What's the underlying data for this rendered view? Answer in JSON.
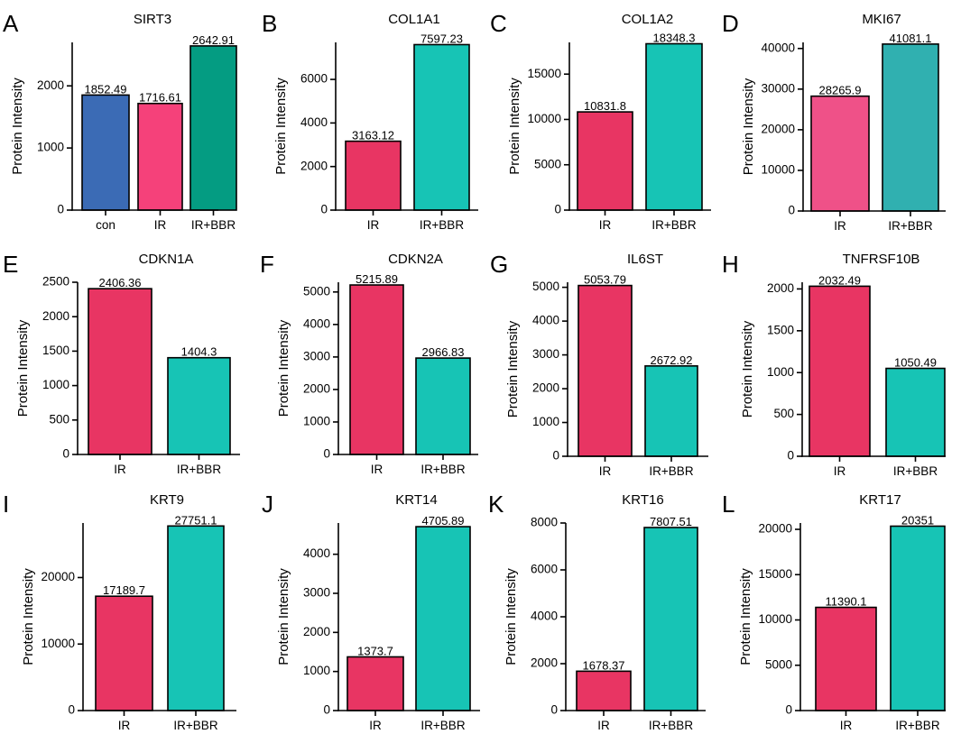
{
  "figure": {
    "ylabel": "Protein Intensity",
    "colors": {
      "con": "#3b6bb5",
      "IR_pink": "#f5417a",
      "IR_red": "#e83563",
      "IR_mki67": "#ef5188",
      "BBR_dark": "#049c82",
      "BBR_teal": "#17c4b5",
      "BBR_mki67": "#30b0b0"
    }
  },
  "chart_data": [
    {
      "panel": "A",
      "title": "SIRT3",
      "type": "bar",
      "categories": [
        "con",
        "IR",
        "IR+BBR"
      ],
      "values": [
        1852.49,
        1716.61,
        2642.91
      ],
      "value_labels": [
        "1852.49",
        "1716.61",
        "2642.91"
      ],
      "bar_colors": [
        "#3b6bb5",
        "#f5417a",
        "#049c82"
      ],
      "ylabel": "Protein Intensity",
      "ylim": [
        0,
        2700
      ],
      "yticks": [
        0,
        1000,
        2000
      ],
      "ytick_labels": [
        "0",
        "1000",
        "2000"
      ]
    },
    {
      "panel": "B",
      "title": "COL1A1",
      "type": "bar",
      "categories": [
        "IR",
        "IR+BBR"
      ],
      "values": [
        3163.12,
        7597.23
      ],
      "value_labels": [
        "3163.12",
        "7597.23"
      ],
      "bar_colors": [
        "#e83563",
        "#17c4b5"
      ],
      "ylabel": "Protein Intensity",
      "ylim": [
        0,
        7700
      ],
      "yticks": [
        0,
        2000,
        4000,
        6000
      ],
      "ytick_labels": [
        "0",
        "2000",
        "4000",
        "6000"
      ]
    },
    {
      "panel": "C",
      "title": "COL1A2",
      "type": "bar",
      "categories": [
        "IR",
        "IR+BBR"
      ],
      "values": [
        10831.8,
        18348.3
      ],
      "value_labels": [
        "10831.8",
        "18348.3"
      ],
      "bar_colors": [
        "#e83563",
        "#17c4b5"
      ],
      "ylabel": "Protein Intensity",
      "ylim": [
        0,
        18500
      ],
      "yticks": [
        0,
        5000,
        10000,
        15000
      ],
      "ytick_labels": [
        "0",
        "5000",
        "10000",
        "15000"
      ]
    },
    {
      "panel": "D",
      "title": "MKI67",
      "type": "bar",
      "categories": [
        "IR",
        "IR+BBR"
      ],
      "values": [
        28265.9,
        41081.1
      ],
      "value_labels": [
        "28265.9",
        "41081.1"
      ],
      "bar_colors": [
        "#ef5188",
        "#30b0b0"
      ],
      "ylabel": "Protein Intensity",
      "ylim": [
        0,
        41500
      ],
      "yticks": [
        0,
        10000,
        20000,
        30000,
        40000
      ],
      "ytick_labels": [
        "0",
        "10000",
        "20000",
        "30000",
        "40000"
      ]
    },
    {
      "panel": "E",
      "title": "CDKN1A",
      "type": "bar",
      "categories": [
        "IR",
        "IR+BBR"
      ],
      "values": [
        2406.36,
        1404.3
      ],
      "value_labels": [
        "2406.36",
        "1404.3"
      ],
      "bar_colors": [
        "#e83563",
        "#17c4b5"
      ],
      "ylabel": "Protein Intensity",
      "ylim": [
        0,
        2500
      ],
      "yticks": [
        0,
        500,
        1000,
        1500,
        2000,
        2500
      ],
      "ytick_labels": [
        "0",
        "500",
        "1000",
        "1500",
        "2000",
        "2500"
      ]
    },
    {
      "panel": "F",
      "title": "CDKN2A",
      "type": "bar",
      "categories": [
        "IR",
        "IR+BBR"
      ],
      "values": [
        5215.89,
        2966.83
      ],
      "value_labels": [
        "5215.89",
        "2966.83"
      ],
      "bar_colors": [
        "#e83563",
        "#17c4b5"
      ],
      "ylabel": "Protein Intensity",
      "ylim": [
        0,
        5300
      ],
      "yticks": [
        0,
        1000,
        2000,
        3000,
        4000,
        5000
      ],
      "ytick_labels": [
        "0",
        "1000",
        "2000",
        "3000",
        "4000",
        "5000"
      ]
    },
    {
      "panel": "G",
      "title": "IL6ST",
      "type": "bar",
      "categories": [
        "IR",
        "IR+BBR"
      ],
      "values": [
        5053.79,
        2672.92
      ],
      "value_labels": [
        "5053.79",
        "2672.92"
      ],
      "bar_colors": [
        "#e83563",
        "#17c4b5"
      ],
      "ylabel": "Protein Intensity",
      "ylim": [
        0,
        5150
      ],
      "yticks": [
        0,
        1000,
        2000,
        3000,
        4000,
        5000
      ],
      "ytick_labels": [
        "0",
        "1000",
        "2000",
        "3000",
        "4000",
        "5000"
      ]
    },
    {
      "panel": "H",
      "title": "TNFRSF10B",
      "type": "bar",
      "categories": [
        "IR",
        "IR+BBR"
      ],
      "values": [
        2032.49,
        1050.49
      ],
      "value_labels": [
        "2032.49",
        "1050.49"
      ],
      "bar_colors": [
        "#e83563",
        "#17c4b5"
      ],
      "ylabel": "Protein Intensity",
      "ylim": [
        0,
        2080
      ],
      "yticks": [
        0,
        500,
        1000,
        1500,
        2000
      ],
      "ytick_labels": [
        "0",
        "500",
        "1000",
        "1500",
        "2000"
      ]
    },
    {
      "panel": "I",
      "title": "KRT9",
      "type": "bar",
      "categories": [
        "IR",
        "IR+BBR"
      ],
      "values": [
        17189.7,
        27751.1
      ],
      "value_labels": [
        "17189.7",
        "27751.1"
      ],
      "bar_colors": [
        "#e83563",
        "#17c4b5"
      ],
      "ylabel": "Protein Intensity",
      "ylim": [
        0,
        28200
      ],
      "yticks": [
        0,
        10000,
        20000
      ],
      "ytick_labels": [
        "0",
        "10000",
        "20000"
      ]
    },
    {
      "panel": "J",
      "title": "KRT14",
      "type": "bar",
      "categories": [
        "IR",
        "IR+BBR"
      ],
      "values": [
        1373.7,
        4705.89
      ],
      "value_labels": [
        "1373.7",
        "4705.89"
      ],
      "bar_colors": [
        "#e83563",
        "#17c4b5"
      ],
      "ylabel": "Protein Intensity",
      "ylim": [
        0,
        4800
      ],
      "yticks": [
        0,
        1000,
        2000,
        3000,
        4000
      ],
      "ytick_labels": [
        "0",
        "1000",
        "2000",
        "3000",
        "4000"
      ]
    },
    {
      "panel": "K",
      "title": "KRT16",
      "type": "bar",
      "categories": [
        "IR",
        "IR+BBR"
      ],
      "values": [
        1678.37,
        7807.51
      ],
      "value_labels": [
        "1678.37",
        "7807.51"
      ],
      "bar_colors": [
        "#e83563",
        "#17c4b5"
      ],
      "ylabel": "Protein Intensity",
      "ylim": [
        0,
        8000
      ],
      "yticks": [
        0,
        2000,
        4000,
        6000,
        8000
      ],
      "ytick_labels": [
        "0",
        "2000",
        "4000",
        "6000",
        "8000"
      ]
    },
    {
      "panel": "L",
      "title": "KRT17",
      "type": "bar",
      "categories": [
        "IR",
        "IR+BBR"
      ],
      "values": [
        11390.1,
        20351
      ],
      "value_labels": [
        "11390.1",
        "20351"
      ],
      "bar_colors": [
        "#e83563",
        "#17c4b5"
      ],
      "ylabel": "Protein Intensity",
      "ylim": [
        0,
        20700
      ],
      "yticks": [
        0,
        5000,
        10000,
        15000,
        20000
      ],
      "ytick_labels": [
        "0",
        "5000",
        "10000",
        "15000",
        "20000"
      ]
    }
  ]
}
